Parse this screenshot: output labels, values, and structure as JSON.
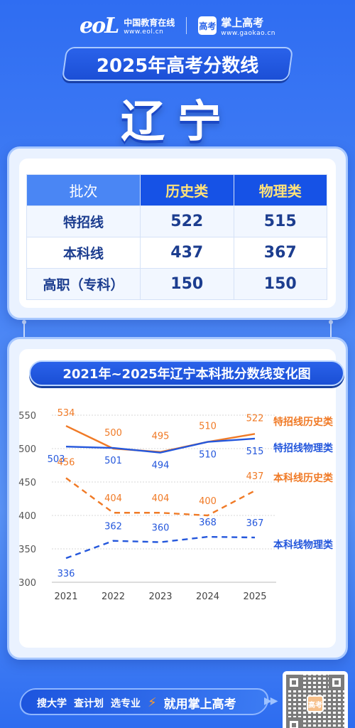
{
  "header": {
    "eol_mark": "eoL",
    "eol_cn": "中国教育在线",
    "eol_en": "www.eol.cn",
    "gaokao_badge": "高考",
    "gaokao_cn": "掌上高考",
    "gaokao_en": "www.gaokao.cn"
  },
  "title": "2025年高考分数线",
  "province": "辽宁",
  "table": {
    "headers": [
      "批次",
      "历史类",
      "物理类"
    ],
    "rows": [
      {
        "label": "特招线",
        "history": "522",
        "physics": "515"
      },
      {
        "label": "本科线",
        "history": "437",
        "physics": "367"
      },
      {
        "label": "高职（专科）",
        "history": "150",
        "physics": "150"
      }
    ]
  },
  "chart_title": "2021年~2025年辽宁本科批分数线变化图",
  "colors": {
    "orange": "#f07a26",
    "blue": "#2457dc",
    "grid": "#d7d7d7"
  },
  "chart_data": {
    "type": "line",
    "title": "2021年~2025年辽宁本科批分数线变化图",
    "x": [
      "2021",
      "2022",
      "2023",
      "2024",
      "2025"
    ],
    "ylim": [
      300,
      550
    ],
    "yticks": [
      "550",
      "500",
      "450",
      "400",
      "350",
      "300"
    ],
    "grid": true,
    "legend": "right-of-lines",
    "series": [
      {
        "name": "特招线历史类",
        "color": "orange",
        "dashed": false,
        "values": [
          534,
          500,
          495,
          510,
          522
        ]
      },
      {
        "name": "特招线物理类",
        "color": "blue",
        "dashed": false,
        "values": [
          503,
          501,
          494,
          510,
          515
        ]
      },
      {
        "name": "本科线历史类",
        "color": "orange",
        "dashed": true,
        "values": [
          456,
          404,
          404,
          400,
          437
        ]
      },
      {
        "name": "本科线物理类",
        "color": "blue",
        "dashed": true,
        "values": [
          336,
          362,
          360,
          368,
          367
        ]
      }
    ]
  },
  "footer": {
    "item1": "搜大学",
    "item2": "查计划",
    "item3": "选专业",
    "slogan": "就用掌上高考",
    "qr_badge": "高考"
  }
}
